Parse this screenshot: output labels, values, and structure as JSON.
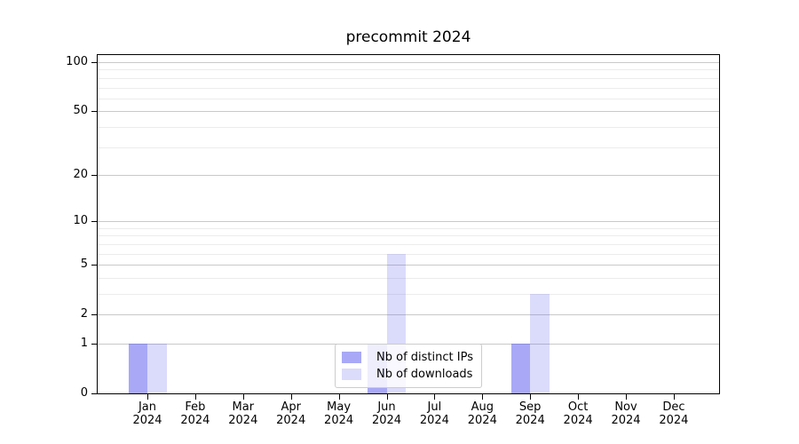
{
  "chart_data": {
    "type": "bar",
    "title": "precommit 2024",
    "categories": [
      "Jan",
      "Feb",
      "Mar",
      "Apr",
      "May",
      "Jun",
      "Jul",
      "Aug",
      "Sep",
      "Oct",
      "Nov",
      "Dec"
    ],
    "year_label": "2024",
    "series": [
      {
        "name": "Nb of distinct IPs",
        "color": "rgba(85,85,238,0.51)",
        "color_hex_on_white": "#a8a8f6",
        "values": [
          1,
          0,
          0,
          0,
          0,
          1,
          0,
          0,
          1,
          0,
          0,
          0
        ]
      },
      {
        "name": "Nb of downloads",
        "color": "rgba(85,85,238,0.21)",
        "color_hex_on_white": "#dbdbfb",
        "values": [
          1,
          0,
          0,
          0,
          0,
          6,
          0,
          0,
          3,
          0,
          0,
          0
        ]
      }
    ],
    "xlabel": "",
    "ylabel": "",
    "yscale": "log1p",
    "ylim": [
      0,
      110.5
    ],
    "yticks_major": [
      0,
      1,
      2,
      5,
      10,
      20,
      50,
      100
    ],
    "yticks_minor": [
      3,
      4,
      6,
      7,
      8,
      9,
      30,
      40,
      60,
      70,
      80,
      90
    ],
    "grid": {
      "major_color": "#c9c9c9",
      "minor_color": "#ececec",
      "visible": true
    },
    "legend": {
      "position": "lower center",
      "background": "rgba(255,255,255,0.8)",
      "border_color": "#cccccc"
    },
    "spine_color": "#000000"
  }
}
